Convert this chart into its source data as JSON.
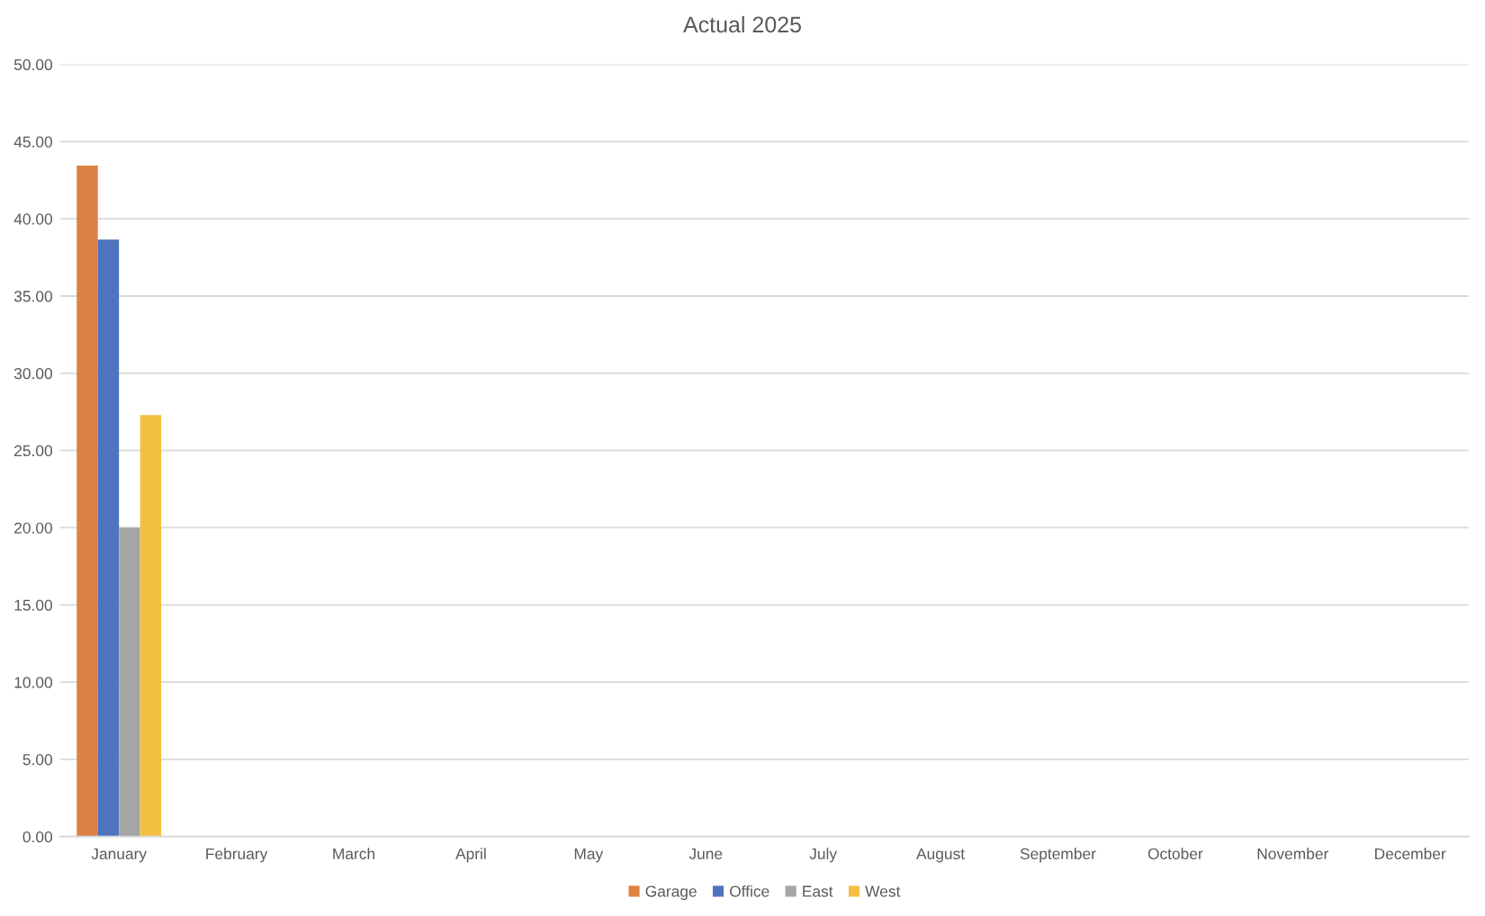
{
  "chart_data": {
    "type": "bar",
    "title": "Actual 2025",
    "categories": [
      "January",
      "February",
      "March",
      "April",
      "May",
      "June",
      "July",
      "August",
      "September",
      "October",
      "November",
      "December"
    ],
    "series": [
      {
        "name": "Garage",
        "color": "#dd8244",
        "values": [
          43.45,
          null,
          null,
          null,
          null,
          null,
          null,
          null,
          null,
          null,
          null,
          null
        ]
      },
      {
        "name": "Office",
        "color": "#4f73be",
        "values": [
          38.65,
          null,
          null,
          null,
          null,
          null,
          null,
          null,
          null,
          null,
          null,
          null
        ]
      },
      {
        "name": "East",
        "color": "#a5a5a5",
        "values": [
          20.0,
          null,
          null,
          null,
          null,
          null,
          null,
          null,
          null,
          null,
          null,
          null
        ]
      },
      {
        "name": "West",
        "color": "#f3c042",
        "values": [
          27.3,
          null,
          null,
          null,
          null,
          null,
          null,
          null,
          null,
          null,
          null,
          null
        ]
      }
    ],
    "ylim": [
      0,
      50
    ],
    "yticks": [
      {
        "value": 0,
        "label": "0.00"
      },
      {
        "value": 5,
        "label": "5.00"
      },
      {
        "value": 10,
        "label": "10.00"
      },
      {
        "value": 15,
        "label": "15.00"
      },
      {
        "value": 20,
        "label": "20.00"
      },
      {
        "value": 25,
        "label": "25.00"
      },
      {
        "value": 30,
        "label": "30.00"
      },
      {
        "value": 35,
        "label": "35.00"
      },
      {
        "value": 40,
        "label": "40.00"
      },
      {
        "value": 45,
        "label": "45.00"
      },
      {
        "value": 50,
        "label": "50.00"
      }
    ],
    "grid": "y",
    "legend": "bottom"
  }
}
